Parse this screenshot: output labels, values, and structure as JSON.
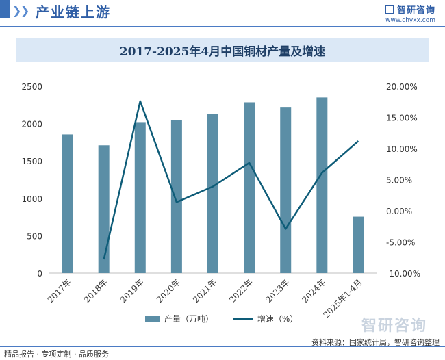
{
  "header": {
    "section_title": "产业链上游"
  },
  "brand": {
    "name": "智研咨询",
    "url": "www.chyxx.com"
  },
  "watermark": "智研咨询",
  "footer": {
    "left": "精品报告 · 专项定制 · 品质服务",
    "source": "资料来源：国家统计局，智研咨询整理"
  },
  "colors": {
    "bar": "#5b8ea6",
    "line": "#0e5c78",
    "title_bg": "#dbe8f6",
    "accent": "#2f5ea6"
  },
  "chart_data": {
    "type": "bar",
    "title": "2017-2025年4月中国铜材产量及增速",
    "categories": [
      "2017年",
      "2018年",
      "2019年",
      "2020年",
      "2021年",
      "2022年",
      "2023年",
      "2024年",
      "2025年1-4月"
    ],
    "series": [
      {
        "name": "产量（万吨）",
        "type": "bar",
        "axis": "left",
        "values": [
          1855,
          1710,
          2020,
          2045,
          2125,
          2285,
          2215,
          2350,
          755
        ]
      },
      {
        "name": "增速（%）",
        "type": "line",
        "axis": "right",
        "values": [
          null,
          -7.8,
          17.6,
          1.4,
          3.9,
          7.7,
          -2.9,
          6.1,
          11.2
        ]
      }
    ],
    "left_axis": {
      "ylim": [
        0,
        2500
      ],
      "ticks": [
        "0",
        "500",
        "1000",
        "1500",
        "2000",
        "2500"
      ]
    },
    "right_axis": {
      "ylim": [
        -10,
        20
      ],
      "ticks": [
        "-10.00%",
        "-5.00%",
        "0.00%",
        "5.00%",
        "10.00%",
        "15.00%",
        "20.00%"
      ]
    },
    "grid": false,
    "legend": "bottom"
  }
}
